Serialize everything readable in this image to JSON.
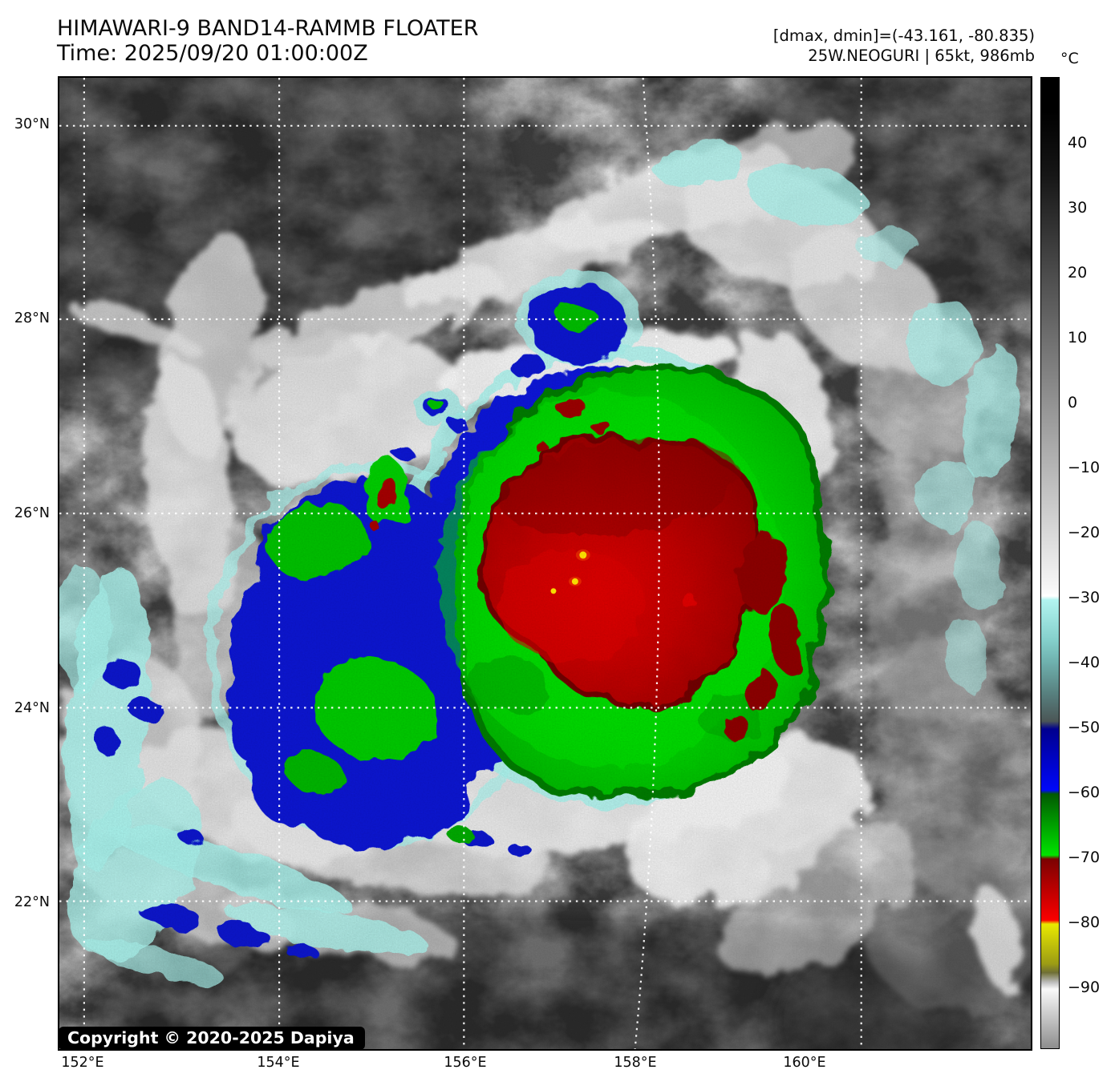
{
  "header": {
    "title": "HIMAWARI-9 BAND14-RAMMB FLOATER",
    "time": "Time: 2025/09/20 01:00:00Z",
    "range_line": "[dmax, dmin]=(-43.161, -80.835)",
    "storm_line": "25W.NEOGURI | 65kt, 986mb"
  },
  "colorbar": {
    "unit_label": "°C",
    "tick_labels": [
      "40",
      "30",
      "20",
      "10",
      "0",
      "−10",
      "−20",
      "−30",
      "−40",
      "−50",
      "−60",
      "−70",
      "−80",
      "−90"
    ],
    "scale_segments": [
      {
        "range": "50 to -30",
        "colors": [
          "#000000",
          "#ffffff"
        ],
        "name": "grayscale"
      },
      {
        "range": "-30 to -50",
        "colors": [
          "#b2f4f0",
          "#4b5656"
        ],
        "name": "cyan"
      },
      {
        "range": "-50 to -60",
        "colors": [
          "#00008e",
          "#0007fa"
        ],
        "name": "blue"
      },
      {
        "range": "-60 to -70",
        "colors": [
          "#015901",
          "#00e400"
        ],
        "name": "green"
      },
      {
        "range": "-70 to -80",
        "colors": [
          "#7b0101",
          "#fb0000"
        ],
        "name": "red"
      },
      {
        "range": "-80 to -88",
        "colors": [
          "#e9e900",
          "#6f6f35"
        ],
        "name": "yellow"
      },
      {
        "range": "-88 to -100",
        "colors": [
          "#f9f9f9",
          "#8e8e8e"
        ],
        "name": "white-gray"
      }
    ]
  },
  "map": {
    "lat_labels": [
      "30°N",
      "28°N",
      "26°N",
      "24°N",
      "22°N"
    ],
    "lon_labels": [
      "152°E",
      "154°E",
      "156°E",
      "158°E",
      "160°E"
    ],
    "copyright": "Copyright © 2020-2025 Dapiya",
    "feature_colors": {
      "background_gray": "#3c3c3c",
      "cloud_white": "#ececec",
      "cold_ring_cyan": "#a7efe9",
      "cold_ring_blue": "#0a18d6",
      "cold_ring_green": "#00c300",
      "cold_core_red": "#a80000",
      "coldest_spots_yellow": "#ffe400"
    }
  }
}
